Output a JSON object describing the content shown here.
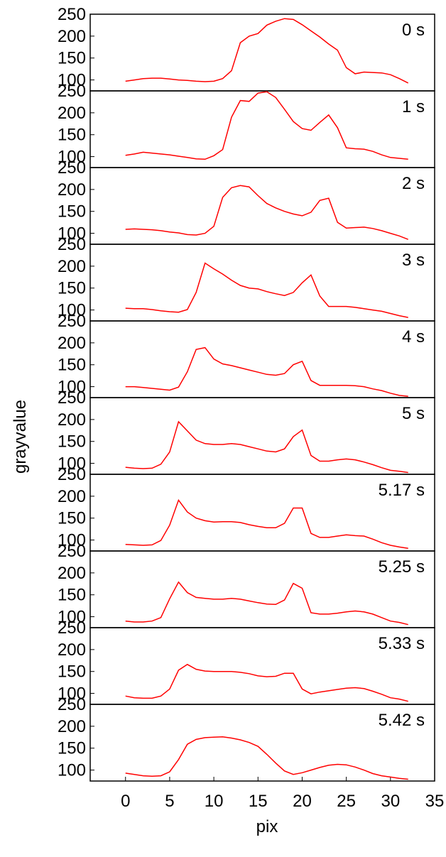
{
  "chart_data": {
    "type": "line",
    "xlabel": "pix",
    "ylabel": "grayvalue",
    "xlim": [
      -4,
      35
    ],
    "ylim": [
      75,
      250
    ],
    "xticks": [
      0,
      5,
      10,
      15,
      20,
      25,
      30,
      35
    ],
    "yticks": [
      100,
      150,
      200,
      250
    ],
    "line_color": "#ff0000",
    "panels": [
      {
        "label": "0 s",
        "x": [
          0,
          1,
          2,
          3,
          4,
          5,
          6,
          7,
          8,
          9,
          10,
          11,
          12,
          13,
          14,
          15,
          16,
          17,
          18,
          19,
          20,
          21,
          22,
          23,
          24,
          25,
          26,
          27,
          28,
          29,
          30,
          31,
          32
        ],
        "values": [
          97,
          100,
          103,
          104,
          104,
          102,
          100,
          99,
          97,
          96,
          97,
          103,
          121,
          185,
          200,
          206,
          225,
          234,
          240,
          238,
          226,
          212,
          198,
          182,
          168,
          128,
          114,
          118,
          117,
          116,
          112,
          103,
          93
        ]
      },
      {
        "label": "1 s",
        "x": [
          0,
          1,
          2,
          3,
          4,
          5,
          6,
          7,
          8,
          9,
          10,
          11,
          12,
          13,
          14,
          15,
          16,
          17,
          18,
          19,
          20,
          21,
          22,
          23,
          24,
          25,
          26,
          27,
          28,
          29,
          30,
          31,
          32
        ],
        "values": [
          103,
          106,
          110,
          108,
          106,
          104,
          101,
          98,
          95,
          94,
          102,
          116,
          190,
          228,
          226,
          245,
          248,
          235,
          208,
          180,
          164,
          160,
          178,
          195,
          166,
          120,
          118,
          117,
          112,
          104,
          98,
          96,
          94
        ]
      },
      {
        "label": "2 s",
        "x": [
          0,
          1,
          2,
          3,
          4,
          5,
          6,
          7,
          8,
          9,
          10,
          11,
          12,
          13,
          14,
          15,
          16,
          17,
          18,
          19,
          20,
          21,
          22,
          23,
          24,
          25,
          26,
          27,
          28,
          29,
          30,
          31,
          32
        ],
        "values": [
          109,
          110,
          109,
          108,
          106,
          103,
          101,
          97,
          96,
          100,
          116,
          182,
          204,
          209,
          206,
          186,
          168,
          158,
          150,
          144,
          140,
          148,
          175,
          180,
          125,
          112,
          113,
          114,
          111,
          106,
          100,
          94,
          86
        ]
      },
      {
        "label": "3 s",
        "x": [
          0,
          1,
          2,
          3,
          4,
          5,
          6,
          7,
          8,
          9,
          10,
          11,
          12,
          13,
          14,
          15,
          16,
          17,
          18,
          19,
          20,
          21,
          22,
          23,
          24,
          25,
          26,
          27,
          28,
          29,
          30,
          31,
          32
        ],
        "values": [
          104,
          103,
          103,
          101,
          98,
          96,
          95,
          101,
          140,
          207,
          194,
          182,
          168,
          156,
          150,
          148,
          142,
          137,
          133,
          140,
          162,
          180,
          132,
          108,
          108,
          108,
          106,
          103,
          100,
          97,
          92,
          87,
          83
        ]
      },
      {
        "label": "4 s",
        "x": [
          0,
          1,
          2,
          3,
          4,
          5,
          6,
          7,
          8,
          9,
          10,
          11,
          12,
          13,
          14,
          15,
          16,
          17,
          18,
          19,
          20,
          21,
          22,
          23,
          24,
          25,
          26,
          27,
          28,
          29,
          30,
          31,
          32
        ],
        "values": [
          100,
          100,
          98,
          96,
          94,
          92,
          99,
          134,
          185,
          189,
          163,
          152,
          148,
          143,
          138,
          133,
          128,
          126,
          130,
          150,
          158,
          114,
          103,
          103,
          103,
          103,
          102,
          100,
          95,
          91,
          85,
          80,
          78
        ]
      },
      {
        "label": "5 s",
        "x": [
          0,
          1,
          2,
          3,
          4,
          5,
          6,
          7,
          8,
          9,
          10,
          11,
          12,
          13,
          14,
          15,
          16,
          17,
          18,
          19,
          20,
          21,
          22,
          23,
          24,
          25,
          26,
          27,
          28,
          29,
          30,
          31,
          32
        ],
        "values": [
          91,
          89,
          88,
          89,
          98,
          126,
          195,
          174,
          153,
          145,
          143,
          143,
          145,
          143,
          138,
          133,
          128,
          126,
          133,
          161,
          176,
          118,
          105,
          105,
          108,
          110,
          108,
          103,
          97,
          90,
          84,
          82,
          79
        ]
      },
      {
        "label": "5.17 s",
        "x": [
          0,
          1,
          2,
          3,
          4,
          5,
          6,
          7,
          8,
          9,
          10,
          11,
          12,
          13,
          14,
          15,
          16,
          17,
          18,
          19,
          20,
          21,
          22,
          23,
          24,
          25,
          26,
          27,
          28,
          29,
          30,
          31,
          32
        ],
        "values": [
          90,
          89,
          88,
          89,
          99,
          134,
          191,
          164,
          150,
          144,
          141,
          142,
          142,
          140,
          135,
          131,
          128,
          128,
          138,
          173,
          173,
          115,
          106,
          106,
          109,
          112,
          110,
          109,
          102,
          94,
          88,
          84,
          81
        ]
      },
      {
        "label": "5.25 s",
        "x": [
          0,
          1,
          2,
          3,
          4,
          5,
          6,
          7,
          8,
          9,
          10,
          11,
          12,
          13,
          14,
          15,
          16,
          17,
          18,
          19,
          20,
          21,
          22,
          23,
          24,
          25,
          26,
          27,
          28,
          29,
          30,
          31,
          32
        ],
        "values": [
          90,
          88,
          88,
          90,
          98,
          141,
          179,
          155,
          144,
          142,
          140,
          140,
          142,
          140,
          136,
          132,
          129,
          128,
          138,
          176,
          165,
          109,
          106,
          106,
          108,
          111,
          113,
          111,
          106,
          98,
          90,
          87,
          82
        ]
      },
      {
        "label": "5.33 s",
        "x": [
          0,
          1,
          2,
          3,
          4,
          5,
          6,
          7,
          8,
          9,
          10,
          11,
          12,
          13,
          14,
          15,
          16,
          17,
          18,
          19,
          20,
          21,
          22,
          23,
          24,
          25,
          26,
          27,
          28,
          29,
          30,
          31,
          32
        ],
        "values": [
          94,
          90,
          89,
          89,
          94,
          110,
          153,
          166,
          155,
          151,
          150,
          150,
          150,
          148,
          145,
          140,
          138,
          139,
          146,
          146,
          110,
          99,
          103,
          106,
          109,
          112,
          113,
          111,
          105,
          98,
          90,
          87,
          82
        ]
      },
      {
        "label": "5.42 s",
        "x": [
          0,
          1,
          2,
          3,
          4,
          5,
          6,
          7,
          8,
          9,
          10,
          11,
          12,
          13,
          14,
          15,
          16,
          17,
          18,
          19,
          20,
          21,
          22,
          23,
          24,
          25,
          26,
          27,
          28,
          29,
          30,
          31,
          32
        ],
        "values": [
          93,
          90,
          87,
          86,
          87,
          96,
          124,
          159,
          170,
          174,
          175,
          176,
          173,
          169,
          163,
          154,
          136,
          116,
          98,
          90,
          94,
          100,
          106,
          111,
          113,
          112,
          107,
          100,
          92,
          87,
          84,
          81,
          79
        ]
      }
    ]
  }
}
